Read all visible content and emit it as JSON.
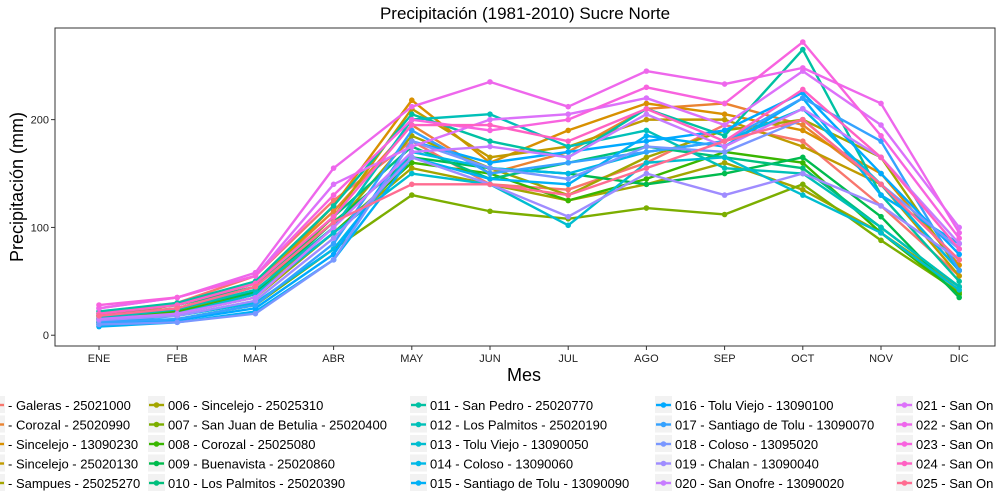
{
  "chart_data": {
    "type": "line",
    "title": "Precipitación (1981-2010)  Sucre Norte",
    "xlabel": "Mes",
    "ylabel": "Precipitación (mm)",
    "categories": [
      "ENE",
      "FEB",
      "MAR",
      "ABR",
      "MAY",
      "JUN",
      "JUL",
      "AGO",
      "SEP",
      "OCT",
      "NOV",
      "DIC"
    ],
    "ylim": [
      -10,
      285
    ],
    "yticks": [
      0,
      100,
      200
    ],
    "grid": false,
    "legend_position": "bottom",
    "series": [
      {
        "name": "- Galeras - 25021000",
        "color": "#F8766D",
        "values": [
          20,
          30,
          55,
          125,
          180,
          140,
          135,
          160,
          195,
          180,
          120,
          55
        ]
      },
      {
        "name": "- Corozal - 25020990",
        "color": "#EA8331",
        "values": [
          18,
          28,
          48,
          115,
          195,
          150,
          170,
          210,
          215,
          195,
          140,
          60
        ]
      },
      {
        "name": "- Sincelejo - 13090230",
        "color": "#D89000",
        "values": [
          15,
          25,
          45,
          120,
          218,
          160,
          190,
          215,
          205,
          190,
          150,
          65
        ]
      },
      {
        "name": "- Sincelejo - 25020130",
        "color": "#C09B00",
        "values": [
          12,
          22,
          40,
          110,
          210,
          165,
          175,
          200,
          200,
          175,
          140,
          55
        ]
      },
      {
        "name": "- Sampues - 25025270",
        "color": "#A3A500",
        "values": [
          15,
          25,
          40,
          100,
          185,
          155,
          130,
          165,
          190,
          200,
          165,
          60
        ]
      },
      {
        "name": "006 - Sincelejo - 25025310",
        "color": "#A3A500",
        "values": [
          12,
          20,
          35,
          95,
          155,
          140,
          125,
          140,
          160,
          135,
          95,
          45
        ]
      },
      {
        "name": "007 - San Juan de Betulia - 25020400",
        "color": "#7CAE00",
        "values": [
          10,
          15,
          28,
          80,
          130,
          115,
          108,
          118,
          112,
          140,
          88,
          40
        ]
      },
      {
        "name": "008 - Corozal - 25025080",
        "color": "#39B600",
        "values": [
          15,
          22,
          38,
          95,
          160,
          150,
          125,
          145,
          170,
          160,
          95,
          38
        ]
      },
      {
        "name": "009 - Buenavista - 25020860",
        "color": "#00BB4E",
        "values": [
          18,
          25,
          40,
          105,
          165,
          155,
          150,
          140,
          150,
          165,
          110,
          35
        ]
      },
      {
        "name": "010 - Los Palmitos - 25020390",
        "color": "#00BF7D",
        "values": [
          20,
          28,
          45,
          110,
          175,
          145,
          160,
          175,
          165,
          155,
          100,
          45
        ]
      },
      {
        "name": "011 - San Pedro - 25020770",
        "color": "#00C1A3",
        "values": [
          22,
          30,
          50,
          120,
          205,
          180,
          165,
          210,
          185,
          265,
          130,
          50
        ]
      },
      {
        "name": "012 - Los Palmitos - 25020190",
        "color": "#00C0B8",
        "values": [
          16,
          24,
          42,
          100,
          200,
          205,
          175,
          190,
          155,
          150,
          100,
          45
        ]
      },
      {
        "name": "013 - Tolu Viejo - 13090050",
        "color": "#00BDD0",
        "values": [
          14,
          20,
          38,
          95,
          150,
          140,
          102,
          160,
          165,
          130,
          95,
          42
        ]
      },
      {
        "name": "014 - Coloso - 13090060",
        "color": "#00B8E7",
        "values": [
          12,
          18,
          30,
          80,
          170,
          155,
          150,
          170,
          180,
          210,
          140,
          60
        ]
      },
      {
        "name": "015 - Santiago de Tolu - 13090090",
        "color": "#00B0F6",
        "values": [
          8,
          12,
          22,
          70,
          165,
          145,
          140,
          185,
          175,
          220,
          130,
          85
        ]
      },
      {
        "name": "016 - Tolu Viejo - 13090100",
        "color": "#00A9FF",
        "values": [
          10,
          14,
          25,
          75,
          180,
          160,
          170,
          180,
          190,
          225,
          150,
          75
        ]
      },
      {
        "name": "017 - Santiago de Tolu - 13090070",
        "color": "#35A2FF",
        "values": [
          12,
          15,
          28,
          85,
          190,
          150,
          160,
          170,
          180,
          220,
          180,
          60
        ]
      },
      {
        "name": "018 - Coloso - 13095020",
        "color": "#7997FF",
        "values": [
          10,
          12,
          20,
          70,
          180,
          155,
          145,
          175,
          170,
          200,
          140,
          80
        ]
      },
      {
        "name": "019 - Chalan - 13090040",
        "color": "#9F8CFF",
        "values": [
          14,
          18,
          32,
          90,
          165,
          140,
          110,
          150,
          130,
          150,
          120,
          70
        ]
      },
      {
        "name": "020 - San Onofre - 13090020",
        "color": "#C77CFF",
        "values": [
          15,
          20,
          35,
          100,
          170,
          175,
          165,
          205,
          175,
          210,
          165,
          85
        ]
      },
      {
        "name": "021 - San On",
        "color": "#DC71FA",
        "values": [
          25,
          35,
          55,
          140,
          175,
          200,
          205,
          220,
          195,
          245,
          195,
          100
        ]
      },
      {
        "name": "022 - San On",
        "color": "#EE67EC",
        "values": [
          25,
          35,
          58,
          155,
          212,
          235,
          212,
          245,
          233,
          248,
          215,
          95
        ]
      },
      {
        "name": "023 - San On",
        "color": "#F863DF",
        "values": [
          28,
          35,
          55,
          130,
          200,
          190,
          200,
          230,
          215,
          272,
          185,
          90
        ]
      },
      {
        "name": "024 - San On",
        "color": "#FF61C3",
        "values": [
          20,
          28,
          48,
          110,
          195,
          195,
          180,
          210,
          180,
          228,
          165,
          80
        ]
      },
      {
        "name": "025 - San On",
        "color": "#FF6C91",
        "values": [
          18,
          25,
          45,
          105,
          140,
          140,
          130,
          155,
          180,
          200,
          140,
          70
        ]
      }
    ],
    "legend_columns": [
      [
        "- Galeras - 25021000",
        "- Corozal - 25020990",
        "- Sincelejo - 13090230",
        "- Sincelejo - 25020130",
        "- Sampues - 25025270"
      ],
      [
        "006 - Sincelejo - 25025310",
        "007 - San Juan de Betulia - 25020400",
        "008 - Corozal - 25025080",
        "009 - Buenavista - 25020860",
        "010 - Los Palmitos - 25020390"
      ],
      [
        "011 - San Pedro - 25020770",
        "012 - Los Palmitos - 25020190",
        "013 - Tolu Viejo - 13090050",
        "014 - Coloso - 13090060",
        "015 - Santiago de Tolu - 13090090"
      ],
      [
        "016 - Tolu Viejo - 13090100",
        "017 - Santiago de Tolu - 13090070",
        "018 - Coloso - 13095020",
        "019 - Chalan - 13090040",
        "020 - San Onofre - 13090020"
      ],
      [
        "021 - San On",
        "022 - San On",
        "023 - San On",
        "024 - San On",
        "025 - San On"
      ]
    ]
  }
}
